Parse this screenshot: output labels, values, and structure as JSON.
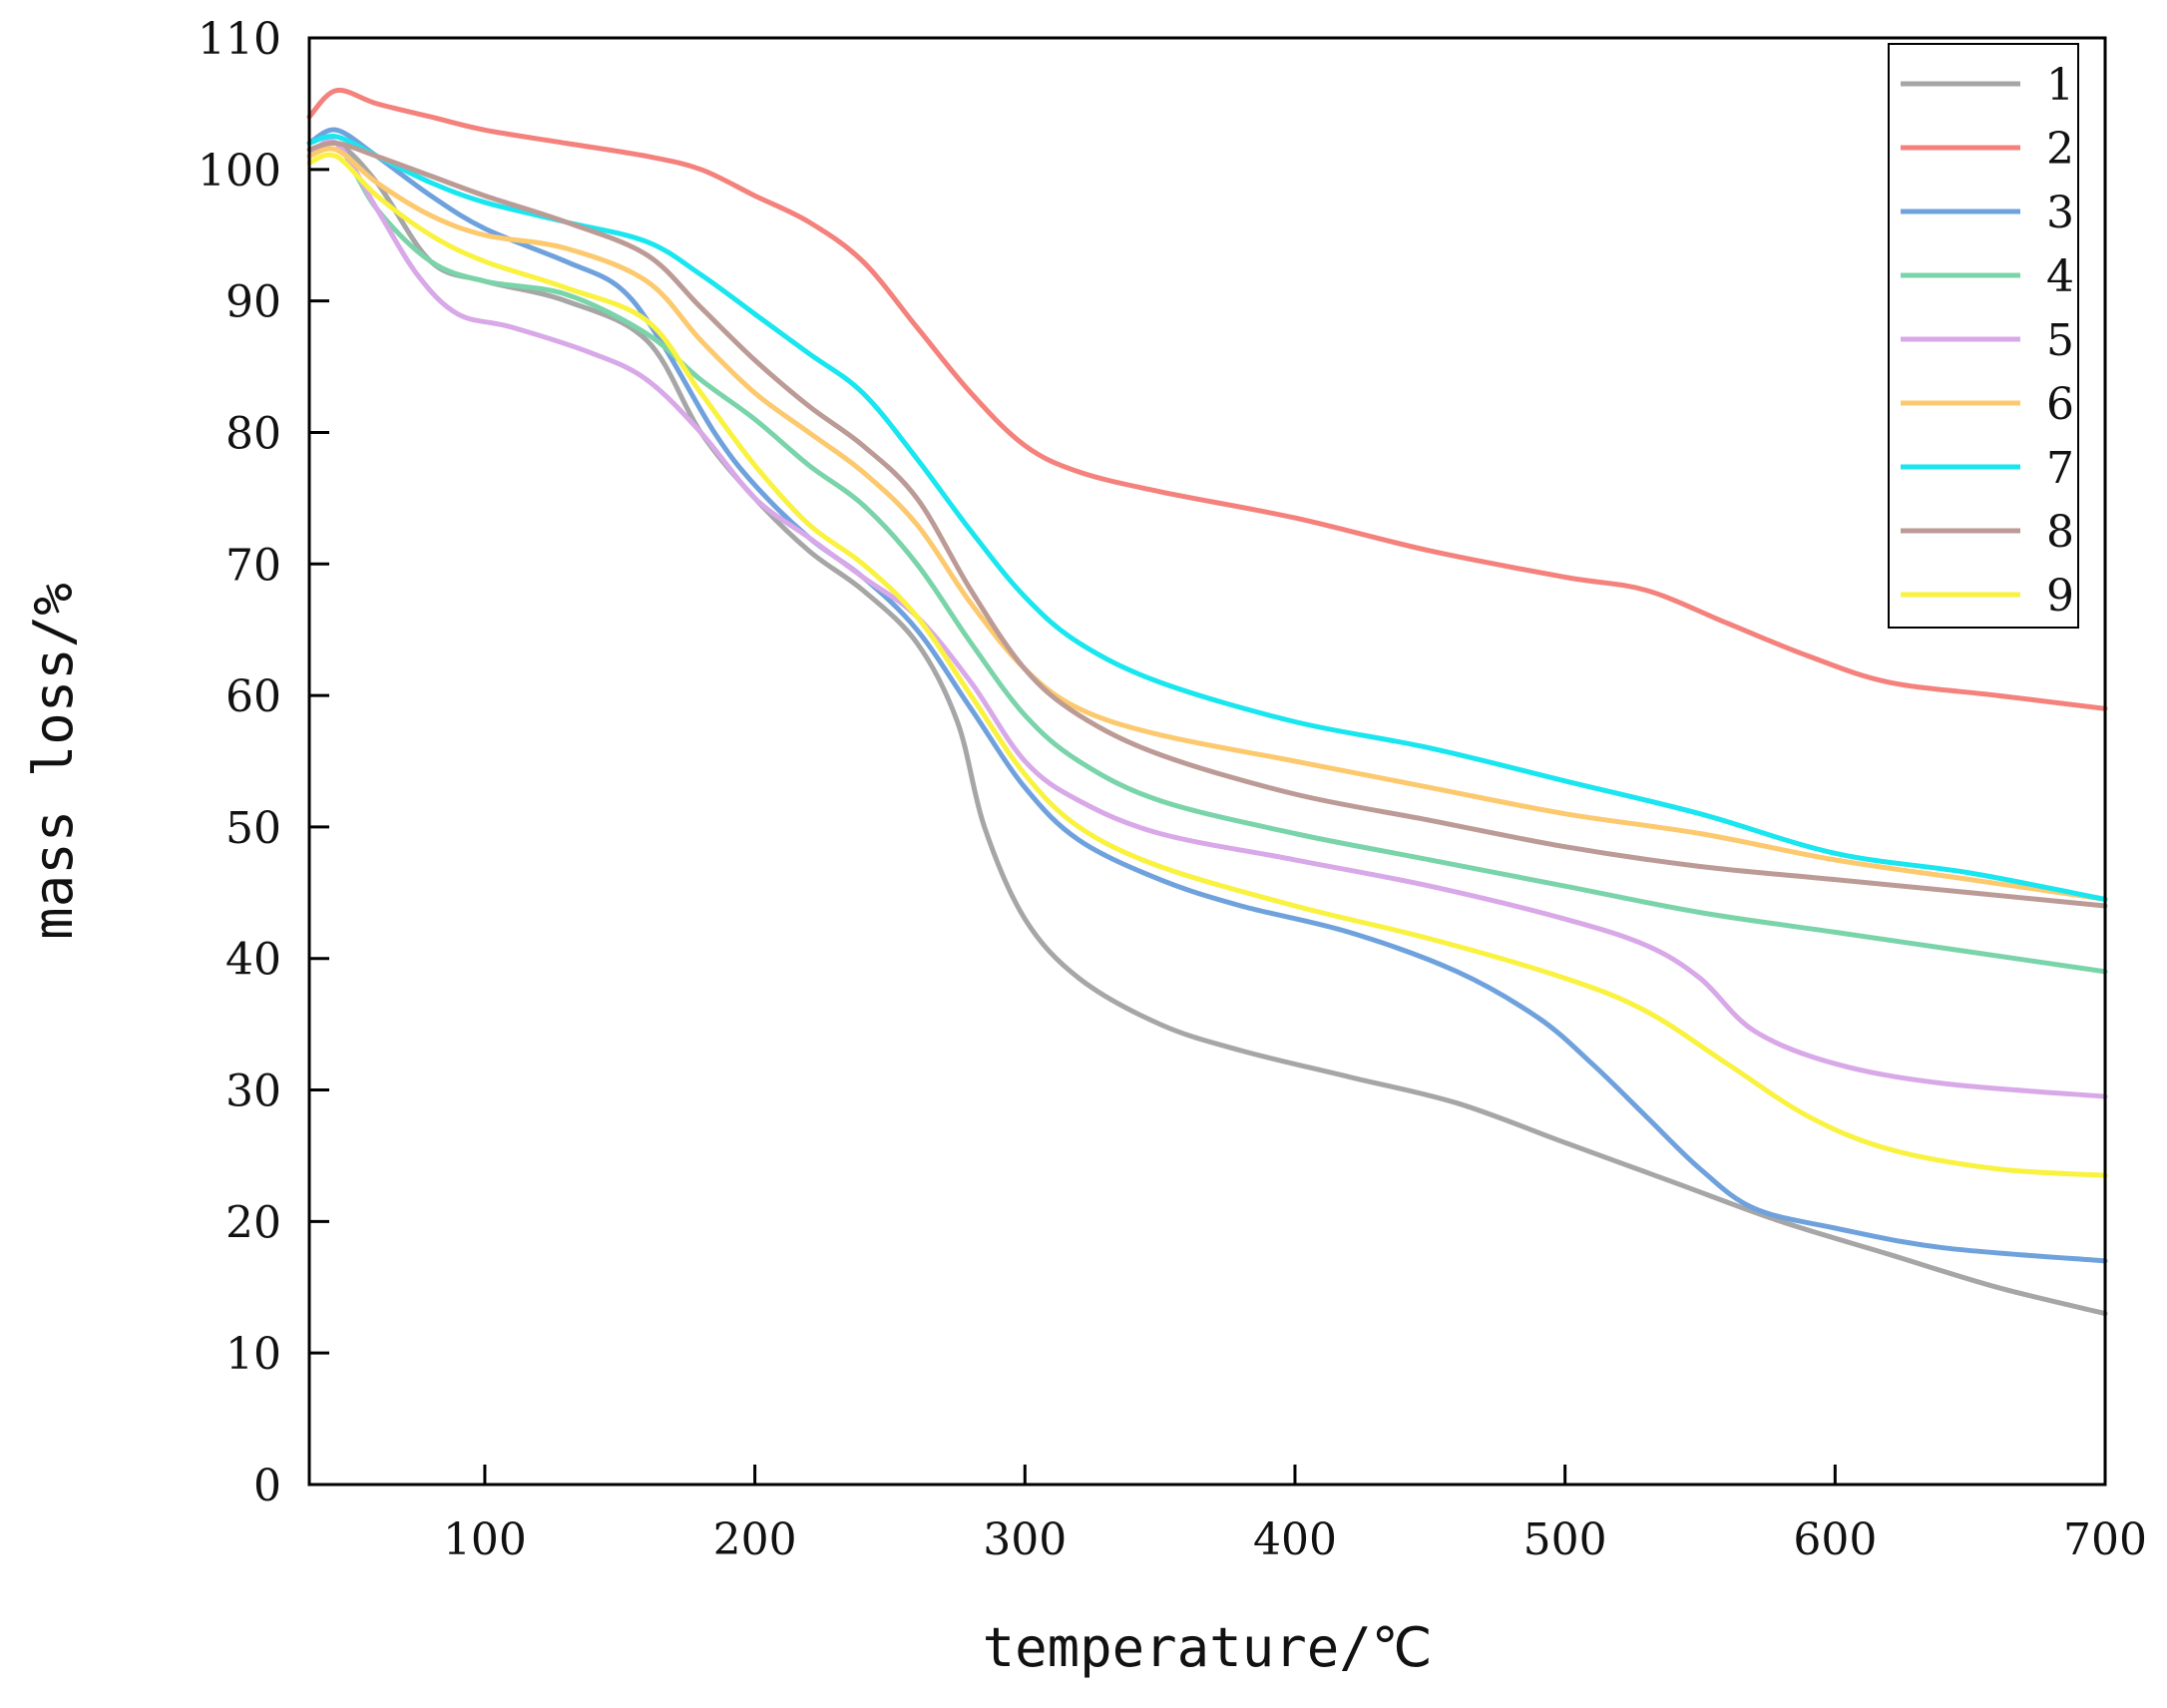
{
  "chart_data": {
    "type": "line",
    "title": "",
    "xlabel": "temperature/℃",
    "ylabel": "mass loss/%",
    "xlim": [
      35,
      700
    ],
    "ylim": [
      0,
      110
    ],
    "xticks": [
      100,
      200,
      300,
      400,
      500,
      600,
      700
    ],
    "yticks": [
      0,
      10,
      20,
      30,
      40,
      50,
      60,
      70,
      80,
      90,
      100,
      110
    ],
    "xtick_labels": [
      "100",
      "200",
      "300",
      "400",
      "500",
      "600",
      "700"
    ],
    "ytick_labels": [
      "0",
      "10",
      "20",
      "30",
      "40",
      "50",
      "60",
      "70",
      "80",
      "90",
      "100",
      "110"
    ],
    "legend_position": "top-right",
    "grid": false,
    "series": [
      {
        "name": "1",
        "color": "#a6a6a6",
        "points": [
          [
            35,
            101
          ],
          [
            45,
            102
          ],
          [
            60,
            99
          ],
          [
            80,
            93
          ],
          [
            100,
            91.5
          ],
          [
            130,
            90
          ],
          [
            160,
            87
          ],
          [
            180,
            80
          ],
          [
            200,
            75
          ],
          [
            220,
            71
          ],
          [
            240,
            68
          ],
          [
            260,
            64
          ],
          [
            275,
            58
          ],
          [
            285,
            50
          ],
          [
            300,
            43
          ],
          [
            320,
            38.5
          ],
          [
            350,
            35
          ],
          [
            380,
            33
          ],
          [
            420,
            31
          ],
          [
            460,
            29
          ],
          [
            500,
            26
          ],
          [
            540,
            23
          ],
          [
            580,
            20
          ],
          [
            620,
            17.5
          ],
          [
            660,
            15
          ],
          [
            700,
            13
          ]
        ]
      },
      {
        "name": "2",
        "color": "#f4817c",
        "points": [
          [
            35,
            104
          ],
          [
            45,
            106
          ],
          [
            60,
            105
          ],
          [
            80,
            104
          ],
          [
            100,
            103
          ],
          [
            130,
            102
          ],
          [
            160,
            101
          ],
          [
            180,
            100
          ],
          [
            200,
            98
          ],
          [
            220,
            96
          ],
          [
            240,
            93
          ],
          [
            260,
            88
          ],
          [
            280,
            83
          ],
          [
            300,
            79
          ],
          [
            320,
            77
          ],
          [
            350,
            75.5
          ],
          [
            400,
            73.5
          ],
          [
            450,
            71
          ],
          [
            500,
            69
          ],
          [
            530,
            68
          ],
          [
            560,
            65.5
          ],
          [
            590,
            63
          ],
          [
            620,
            61
          ],
          [
            660,
            60
          ],
          [
            700,
            59
          ]
        ]
      },
      {
        "name": "3",
        "color": "#6fa2dd",
        "points": [
          [
            35,
            102
          ],
          [
            45,
            103
          ],
          [
            60,
            101
          ],
          [
            80,
            98
          ],
          [
            100,
            95.5
          ],
          [
            130,
            93
          ],
          [
            150,
            91
          ],
          [
            165,
            87
          ],
          [
            185,
            80
          ],
          [
            200,
            76
          ],
          [
            220,
            72
          ],
          [
            240,
            69
          ],
          [
            260,
            65
          ],
          [
            280,
            59
          ],
          [
            300,
            53
          ],
          [
            320,
            49
          ],
          [
            350,
            46
          ],
          [
            380,
            44
          ],
          [
            420,
            42
          ],
          [
            460,
            39
          ],
          [
            490,
            35.5
          ],
          [
            510,
            32
          ],
          [
            530,
            28
          ],
          [
            550,
            24
          ],
          [
            570,
            21
          ],
          [
            600,
            19.5
          ],
          [
            640,
            18
          ],
          [
            700,
            17
          ]
        ]
      },
      {
        "name": "4",
        "color": "#7ad4a9",
        "points": [
          [
            35,
            101
          ],
          [
            45,
            102
          ],
          [
            60,
            97
          ],
          [
            80,
            93
          ],
          [
            100,
            91.5
          ],
          [
            130,
            90.5
          ],
          [
            160,
            87.5
          ],
          [
            180,
            84
          ],
          [
            200,
            81
          ],
          [
            220,
            77.5
          ],
          [
            240,
            74.5
          ],
          [
            260,
            70
          ],
          [
            280,
            64
          ],
          [
            300,
            58.5
          ],
          [
            320,
            55
          ],
          [
            350,
            52
          ],
          [
            400,
            49.5
          ],
          [
            450,
            47.5
          ],
          [
            500,
            45.5
          ],
          [
            550,
            43.5
          ],
          [
            600,
            42
          ],
          [
            650,
            40.5
          ],
          [
            700,
            39
          ]
        ]
      },
      {
        "name": "5",
        "color": "#d8a8e8",
        "points": [
          [
            35,
            101
          ],
          [
            45,
            102
          ],
          [
            60,
            97
          ],
          [
            75,
            92
          ],
          [
            90,
            89
          ],
          [
            110,
            88
          ],
          [
            140,
            86
          ],
          [
            160,
            84
          ],
          [
            180,
            80
          ],
          [
            200,
            75
          ],
          [
            220,
            72
          ],
          [
            240,
            69
          ],
          [
            260,
            66
          ],
          [
            280,
            61
          ],
          [
            300,
            55
          ],
          [
            320,
            52
          ],
          [
            350,
            49.5
          ],
          [
            400,
            47.5
          ],
          [
            450,
            45.5
          ],
          [
            500,
            43
          ],
          [
            530,
            41
          ],
          [
            550,
            38.5
          ],
          [
            570,
            34.5
          ],
          [
            600,
            32
          ],
          [
            640,
            30.5
          ],
          [
            700,
            29.5
          ]
        ]
      },
      {
        "name": "6",
        "color": "#fcc96e",
        "points": [
          [
            35,
            101
          ],
          [
            45,
            101.5
          ],
          [
            60,
            99
          ],
          [
            80,
            96.5
          ],
          [
            100,
            95
          ],
          [
            130,
            94
          ],
          [
            160,
            91.5
          ],
          [
            180,
            87
          ],
          [
            200,
            83
          ],
          [
            220,
            80
          ],
          [
            240,
            77
          ],
          [
            260,
            73
          ],
          [
            280,
            67
          ],
          [
            300,
            62
          ],
          [
            320,
            59
          ],
          [
            350,
            57
          ],
          [
            400,
            55
          ],
          [
            450,
            53
          ],
          [
            500,
            51
          ],
          [
            550,
            49.5
          ],
          [
            600,
            47.5
          ],
          [
            650,
            46
          ],
          [
            700,
            44.5
          ]
        ]
      },
      {
        "name": "7",
        "color": "#19e6ef",
        "points": [
          [
            35,
            102
          ],
          [
            45,
            102.5
          ],
          [
            60,
            101
          ],
          [
            80,
            99
          ],
          [
            100,
            97.5
          ],
          [
            130,
            96
          ],
          [
            160,
            94.5
          ],
          [
            180,
            92
          ],
          [
            200,
            89
          ],
          [
            220,
            86
          ],
          [
            240,
            83
          ],
          [
            260,
            78
          ],
          [
            280,
            72.5
          ],
          [
            300,
            67.5
          ],
          [
            320,
            64
          ],
          [
            350,
            61
          ],
          [
            400,
            58
          ],
          [
            450,
            56
          ],
          [
            500,
            53.5
          ],
          [
            550,
            51
          ],
          [
            600,
            48
          ],
          [
            650,
            46.5
          ],
          [
            700,
            44.5
          ]
        ]
      },
      {
        "name": "8",
        "color": "#bc9b96",
        "points": [
          [
            35,
            101.5
          ],
          [
            45,
            102
          ],
          [
            60,
            101
          ],
          [
            80,
            99.5
          ],
          [
            100,
            98
          ],
          [
            130,
            96
          ],
          [
            160,
            93.5
          ],
          [
            180,
            89.5
          ],
          [
            200,
            85.5
          ],
          [
            220,
            82
          ],
          [
            240,
            79
          ],
          [
            260,
            75
          ],
          [
            280,
            68
          ],
          [
            300,
            62
          ],
          [
            320,
            58.5
          ],
          [
            350,
            55.5
          ],
          [
            400,
            52.5
          ],
          [
            450,
            50.5
          ],
          [
            500,
            48.5
          ],
          [
            550,
            47
          ],
          [
            600,
            46
          ],
          [
            650,
            45
          ],
          [
            700,
            44
          ]
        ]
      },
      {
        "name": "9",
        "color": "#f9f23f",
        "points": [
          [
            35,
            100.5
          ],
          [
            45,
            101
          ],
          [
            60,
            98
          ],
          [
            80,
            95
          ],
          [
            100,
            93
          ],
          [
            130,
            91
          ],
          [
            160,
            88.5
          ],
          [
            180,
            83
          ],
          [
            200,
            77.5
          ],
          [
            220,
            73
          ],
          [
            240,
            70
          ],
          [
            260,
            66
          ],
          [
            280,
            60
          ],
          [
            300,
            54
          ],
          [
            320,
            50
          ],
          [
            350,
            47
          ],
          [
            400,
            44
          ],
          [
            450,
            41.5
          ],
          [
            500,
            38.5
          ],
          [
            530,
            36
          ],
          [
            560,
            32
          ],
          [
            590,
            28
          ],
          [
            620,
            25.5
          ],
          [
            660,
            24
          ],
          [
            700,
            23.5
          ]
        ]
      }
    ]
  }
}
